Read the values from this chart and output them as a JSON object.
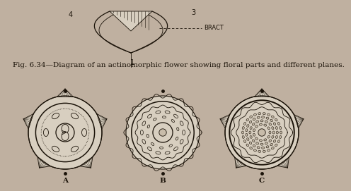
{
  "bg_color": "#bfb0a0",
  "title_text": "Fig. 6.34—Diagram of an actinomorphic flower showing floral parts and different planes.",
  "title_fontsize": 7.5,
  "bract_label": "BRACT",
  "num_1": "1",
  "num_3": "3",
  "num_4": "4",
  "label_A": "A",
  "label_B": "B",
  "label_C": "C",
  "draw_color": "#1a1208",
  "light_fill": "#d8cfc0",
  "mid_fill": "#c8bcaa",
  "dark_fill": "#9a9080"
}
